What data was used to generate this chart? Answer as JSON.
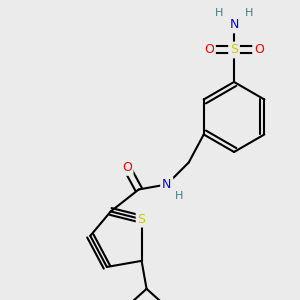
{
  "background_color": "#ebebeb",
  "atom_colors": {
    "C": "#000000",
    "H": "#408080",
    "N": "#0000ff",
    "O": "#ff0000",
    "S": "#cccc00",
    "S_thio": "#cccc00"
  },
  "bond_color": "#000000",
  "bond_width": 1.5,
  "figsize": [
    3.0,
    3.0
  ],
  "dpi": 100
}
